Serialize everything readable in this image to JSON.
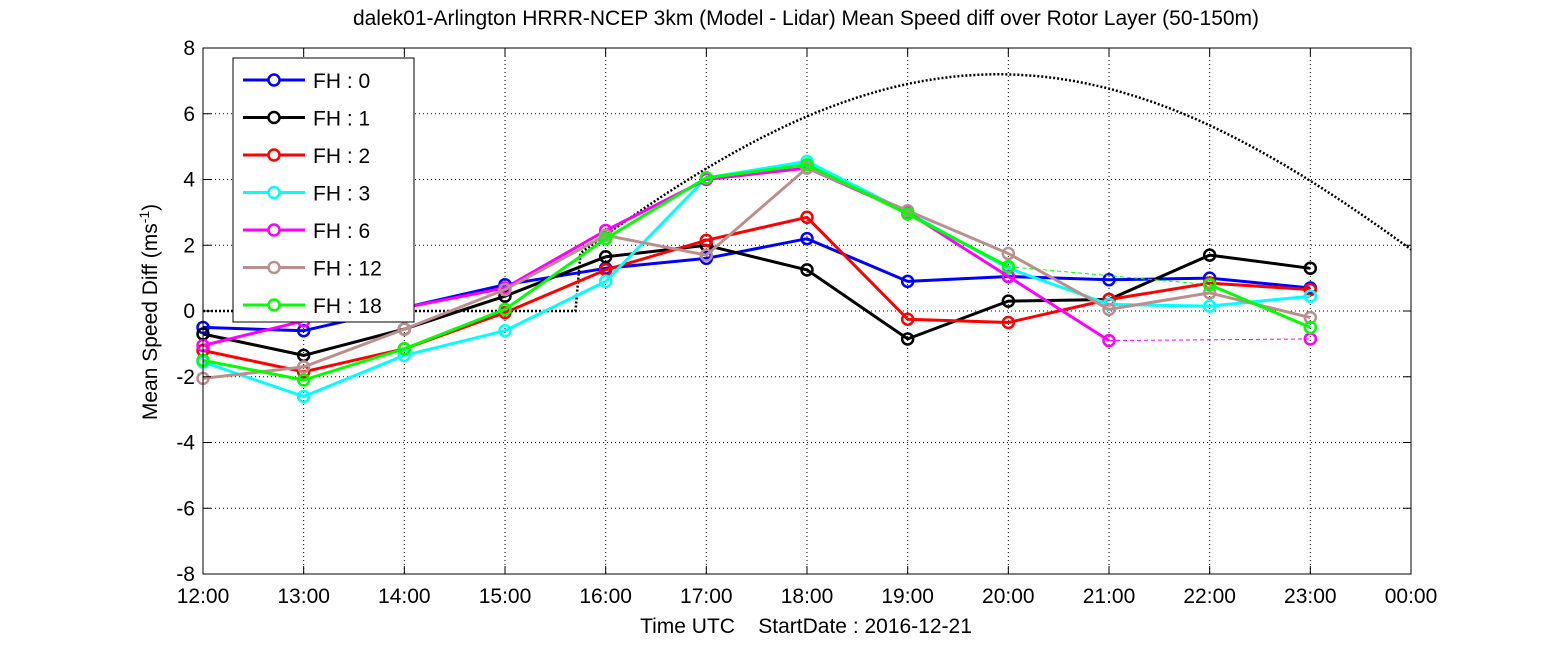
{
  "chart_data": {
    "type": "line",
    "title": "dalek01-Arlington HRRR-NCEP 3km (Model - Lidar) Mean Speed diff over Rotor Layer (50-150m)",
    "xlabel": "Time UTC    StartDate : 2016-12-21",
    "ylabel_main": "Mean Speed Diff (ms",
    "ylabel_sup": "-1",
    "ylabel_close": ")",
    "categories": [
      "12:00",
      "13:00",
      "14:00",
      "15:00",
      "16:00",
      "17:00",
      "18:00",
      "19:00",
      "20:00",
      "21:00",
      "22:00",
      "23:00",
      "00:00"
    ],
    "x_hours": [
      12,
      13,
      14,
      15,
      16,
      17,
      18,
      19,
      20,
      21,
      22,
      23,
      24
    ],
    "ylim": [
      -8,
      8
    ],
    "yticks": [
      -8,
      -6,
      -4,
      -2,
      0,
      2,
      4,
      6,
      8
    ],
    "ytick_labels": [
      "-8",
      "-6",
      "-4",
      "-2",
      "0",
      "2",
      "4",
      "6",
      "8"
    ],
    "grid": true,
    "legend_position": "top-left",
    "series": [
      {
        "name": "FH : 0",
        "color": "#0000ff",
        "x": [
          12,
          13,
          14,
          15,
          16,
          17,
          18,
          19,
          20,
          21,
          22,
          23
        ],
        "values": [
          -0.5,
          -0.6,
          0.1,
          0.8,
          1.3,
          1.6,
          2.2,
          0.9,
          1.05,
          0.95,
          1.0,
          0.7
        ]
      },
      {
        "name": "FH : 1",
        "color": "#000000",
        "x": [
          12,
          13,
          14,
          15,
          16,
          17,
          18,
          19,
          20,
          21,
          22,
          23
        ],
        "values": [
          -0.7,
          -1.35,
          -0.55,
          0.45,
          1.65,
          2.0,
          1.25,
          -0.85,
          0.3,
          0.35,
          1.7,
          1.3
        ]
      },
      {
        "name": "FH : 2",
        "color": "#ff0000",
        "x": [
          12,
          13,
          14,
          15,
          16,
          17,
          18,
          19,
          20,
          21,
          22,
          23
        ],
        "values": [
          -1.2,
          -1.85,
          -1.15,
          -0.05,
          1.25,
          2.15,
          2.85,
          -0.25,
          -0.35,
          0.35,
          0.85,
          0.65
        ]
      },
      {
        "name": "FH : 3",
        "color": "#00ffff",
        "x": [
          12,
          13,
          14,
          15,
          16,
          17,
          18,
          19,
          20,
          21,
          22,
          23
        ],
        "values": [
          -1.55,
          -2.6,
          -1.35,
          -0.6,
          0.9,
          4.05,
          4.55,
          3.0,
          1.3,
          0.2,
          0.15,
          0.45
        ]
      },
      {
        "name": "FH : 6",
        "color": "#ff00ff",
        "x": [
          12,
          13,
          14,
          15,
          16,
          17,
          18,
          19,
          20,
          21,
          23
        ],
        "values": [
          -1.05,
          -0.3,
          0.1,
          0.7,
          2.45,
          4.0,
          4.35,
          3.0,
          1.05,
          -0.9,
          -0.85
        ]
      },
      {
        "name": "FH : 12",
        "color": "#bc8f8f",
        "x": [
          12,
          13,
          14,
          15,
          16,
          17,
          18,
          19,
          20,
          21,
          22,
          23
        ],
        "values": [
          -2.05,
          -1.7,
          -0.55,
          0.65,
          2.3,
          1.7,
          4.35,
          3.05,
          1.75,
          0.05,
          0.55,
          -0.2
        ]
      },
      {
        "name": "FH : 18",
        "color": "#00ff00",
        "x": [
          12,
          13,
          14,
          15,
          16,
          17,
          18,
          19,
          20,
          22,
          23
        ],
        "values": [
          -1.5,
          -2.1,
          -1.15,
          0.05,
          2.2,
          4.05,
          4.45,
          2.95,
          1.35,
          0.8,
          -0.5
        ]
      }
    ],
    "solar_curve": {
      "color": "#000000",
      "start": 12,
      "end": 24,
      "step": 0.05,
      "sunrise": 15.75,
      "sunset": 25.6,
      "noon": 19.9,
      "peak": 7.2
    }
  }
}
